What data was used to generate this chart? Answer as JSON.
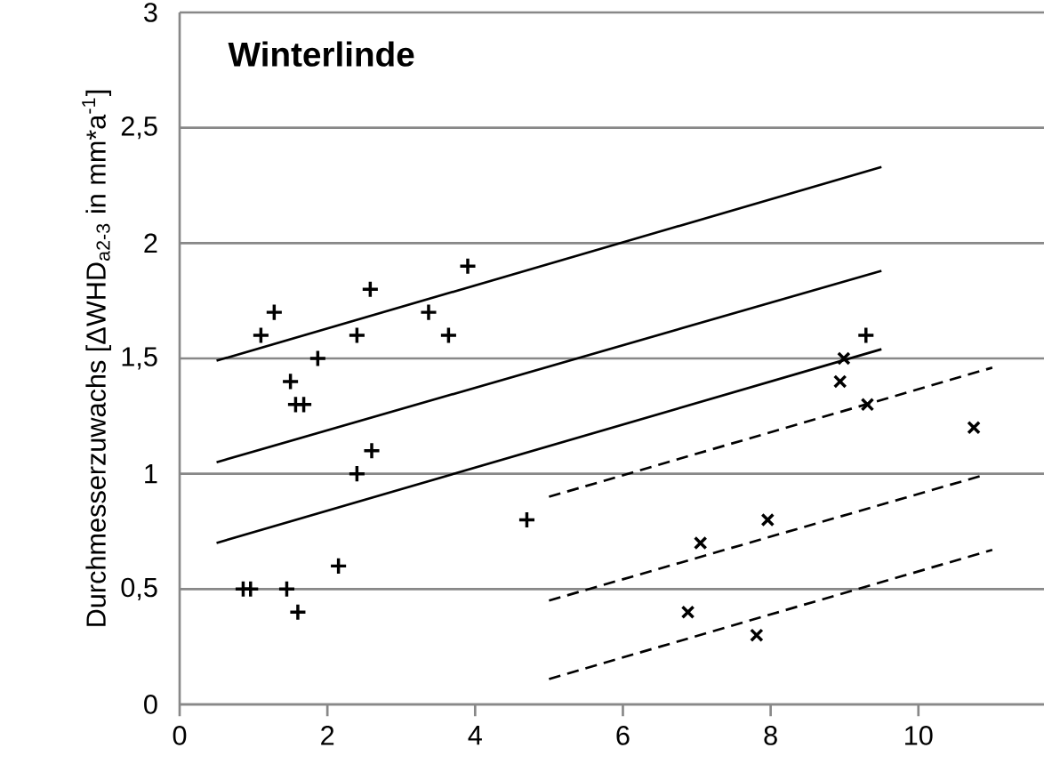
{
  "chart_data": {
    "type": "scatter",
    "title": "Winterlinde",
    "ylabel": "Durchmesserzuwachs [ΔWHD$_{a2-3}$ in mm*a$^{-1}$]",
    "xlim": [
      0,
      11.7
    ],
    "xticks": [
      0,
      2,
      4,
      6,
      8,
      10
    ],
    "ylim": [
      0,
      3
    ],
    "yticks": [
      0,
      {
        "value": 0.5,
        "label": "0,5"
      },
      1,
      {
        "value": 1.5,
        "label": "1,5"
      },
      2,
      {
        "value": 2.5,
        "label": "2,5"
      },
      3
    ],
    "grid": "y",
    "series": [
      {
        "marker": "plus",
        "color": "#000000",
        "x": [
          1.1,
          1.28,
          1.87,
          1.5,
          1.57,
          1.68,
          2.4,
          2.58,
          3.37,
          3.64,
          3.9,
          2.4,
          2.6,
          4.7,
          0.86,
          0.96,
          1.45,
          1.6,
          2.15,
          9.29
        ],
        "values": [
          1.6,
          1.7,
          1.5,
          1.4,
          1.3,
          1.3,
          1.6,
          1.8,
          1.7,
          1.6,
          1.9,
          1.0,
          1.1,
          0.8,
          0.5,
          0.5,
          0.5,
          0.4,
          0.6,
          1.6
        ]
      },
      {
        "marker": "cross",
        "color": "#000000",
        "x": [
          8.99,
          8.94,
          9.31,
          10.75,
          7.96,
          7.05,
          6.88,
          7.81
        ],
        "values": [
          1.5,
          1.4,
          1.3,
          1.2,
          0.8,
          0.7,
          0.4,
          0.3
        ]
      },
      {
        "type": "line",
        "line_style": "solid",
        "color": "#000000",
        "x": [
          0.5,
          9.5
        ],
        "values": [
          1.05,
          1.88
        ]
      },
      {
        "type": "line",
        "line_style": "solid",
        "color": "#000000",
        "x": [
          0.5,
          9.5
        ],
        "values": [
          1.49,
          2.33
        ]
      },
      {
        "type": "line",
        "line_style": "solid",
        "color": "#000000",
        "x": [
          0.5,
          9.5
        ],
        "values": [
          0.7,
          1.54
        ]
      },
      {
        "type": "line",
        "line_style": "dashed",
        "color": "#000000",
        "x": [
          5.0,
          10.84
        ],
        "values": [
          0.45,
          0.99
        ]
      },
      {
        "type": "line",
        "line_style": "dashed",
        "color": "#000000",
        "x": [
          5.0,
          11.0
        ],
        "values": [
          0.9,
          1.46
        ]
      },
      {
        "type": "line",
        "line_style": "dashed",
        "color": "#000000",
        "x": [
          5.0,
          11.0
        ],
        "values": [
          0.11,
          0.67
        ]
      }
    ]
  }
}
